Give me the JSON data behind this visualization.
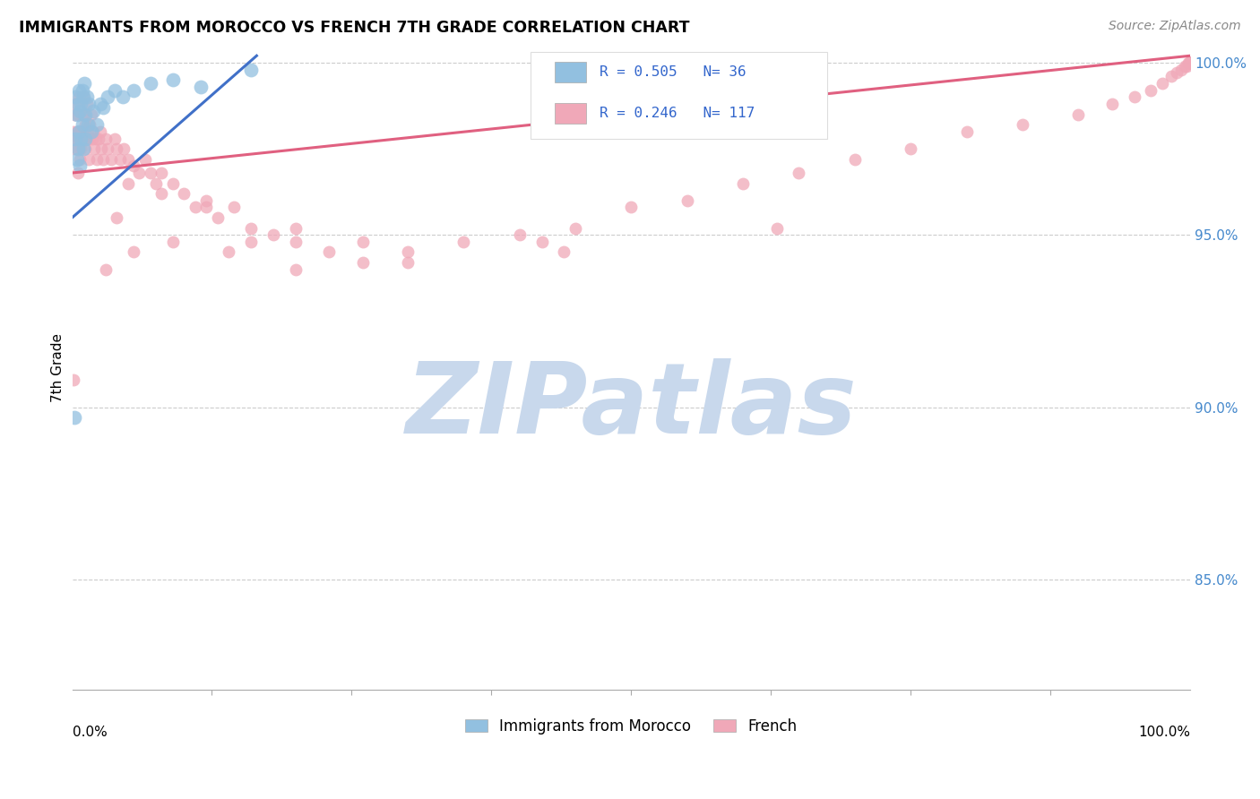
{
  "title": "IMMIGRANTS FROM MOROCCO VS FRENCH 7TH GRADE CORRELATION CHART",
  "source": "Source: ZipAtlas.com",
  "ylabel": "7th Grade",
  "blue_R": 0.505,
  "blue_N": 36,
  "pink_R": 0.246,
  "pink_N": 117,
  "blue_color": "#92C0E0",
  "pink_color": "#F0A8B8",
  "blue_edge_color": "#92C0E0",
  "pink_edge_color": "#F0A8B8",
  "blue_line_color": "#4070C8",
  "pink_line_color": "#E06080",
  "legend_label_blue": "Immigrants from Morocco",
  "legend_label_pink": "French",
  "xlim": [
    0.0,
    1.0
  ],
  "ylim": [
    0.818,
    1.005
  ],
  "y_tick_positions": [
    0.85,
    0.9,
    0.95,
    1.0
  ],
  "y_tick_labels": [
    "85.0%",
    "90.0%",
    "95.0%",
    "100.0%"
  ],
  "watermark": "ZIPatlas",
  "watermark_color": "#C8D8EC",
  "background_color": "#ffffff",
  "blue_line_x": [
    0.0,
    0.165
  ],
  "blue_line_y": [
    0.955,
    1.002
  ],
  "pink_line_x": [
    0.0,
    1.0
  ],
  "pink_line_y": [
    0.968,
    1.002
  ],
  "blue_x": [
    0.002,
    0.003,
    0.003,
    0.004,
    0.004,
    0.005,
    0.005,
    0.006,
    0.006,
    0.007,
    0.007,
    0.008,
    0.008,
    0.009,
    0.009,
    0.01,
    0.01,
    0.011,
    0.012,
    0.012,
    0.013,
    0.014,
    0.015,
    0.017,
    0.019,
    0.022,
    0.025,
    0.028,
    0.032,
    0.038,
    0.045,
    0.055,
    0.07,
    0.09,
    0.115,
    0.16
  ],
  "blue_y": [
    0.897,
    0.99,
    0.978,
    0.985,
    0.972,
    0.988,
    0.975,
    0.992,
    0.98,
    0.986,
    0.97,
    0.988,
    0.978,
    0.992,
    0.982,
    0.99,
    0.975,
    0.994,
    0.985,
    0.978,
    0.99,
    0.982,
    0.988,
    0.98,
    0.986,
    0.982,
    0.988,
    0.987,
    0.99,
    0.992,
    0.99,
    0.992,
    0.994,
    0.995,
    0.993,
    0.998
  ],
  "pink_x": [
    0.001,
    0.002,
    0.002,
    0.003,
    0.003,
    0.004,
    0.004,
    0.005,
    0.005,
    0.005,
    0.006,
    0.006,
    0.007,
    0.007,
    0.008,
    0.008,
    0.009,
    0.009,
    0.01,
    0.01,
    0.011,
    0.011,
    0.012,
    0.012,
    0.013,
    0.013,
    0.014,
    0.015,
    0.015,
    0.016,
    0.017,
    0.018,
    0.019,
    0.02,
    0.021,
    0.022,
    0.024,
    0.025,
    0.026,
    0.028,
    0.03,
    0.032,
    0.035,
    0.038,
    0.04,
    0.043,
    0.046,
    0.05,
    0.055,
    0.06,
    0.065,
    0.07,
    0.075,
    0.08,
    0.09,
    0.1,
    0.11,
    0.12,
    0.13,
    0.145,
    0.16,
    0.18,
    0.2,
    0.23,
    0.26,
    0.3,
    0.35,
    0.4,
    0.45,
    0.5,
    0.55,
    0.6,
    0.65,
    0.7,
    0.75,
    0.8,
    0.85,
    0.9,
    0.93,
    0.95,
    0.965,
    0.975,
    0.983,
    0.988,
    0.992,
    0.995,
    0.997,
    0.998,
    0.999,
    1.0,
    1.0,
    1.0,
    1.0,
    1.0,
    1.0,
    1.0,
    1.0,
    1.0,
    1.0,
    1.0,
    0.001,
    0.04,
    0.16,
    0.26,
    0.42,
    0.63,
    0.05,
    0.08,
    0.12,
    0.2,
    0.03,
    0.055,
    0.09,
    0.14,
    0.2,
    0.3,
    0.44
  ],
  "pink_y": [
    0.98,
    0.975,
    0.985,
    0.978,
    0.988,
    0.98,
    0.975,
    0.985,
    0.978,
    0.968,
    0.98,
    0.99,
    0.978,
    0.972,
    0.98,
    0.975,
    0.978,
    0.985,
    0.98,
    0.99,
    0.978,
    0.985,
    0.975,
    0.982,
    0.978,
    0.988,
    0.98,
    0.978,
    0.972,
    0.982,
    0.985,
    0.978,
    0.98,
    0.975,
    0.978,
    0.972,
    0.978,
    0.98,
    0.975,
    0.972,
    0.978,
    0.975,
    0.972,
    0.978,
    0.975,
    0.972,
    0.975,
    0.972,
    0.97,
    0.968,
    0.972,
    0.968,
    0.965,
    0.968,
    0.965,
    0.962,
    0.958,
    0.96,
    0.955,
    0.958,
    0.952,
    0.95,
    0.948,
    0.945,
    0.948,
    0.945,
    0.948,
    0.95,
    0.952,
    0.958,
    0.96,
    0.965,
    0.968,
    0.972,
    0.975,
    0.98,
    0.982,
    0.985,
    0.988,
    0.99,
    0.992,
    0.994,
    0.996,
    0.997,
    0.998,
    0.999,
    0.999,
    1.0,
    1.0,
    1.0,
    1.0,
    1.0,
    1.0,
    1.0,
    1.0,
    1.0,
    1.0,
    1.0,
    1.0,
    1.0,
    0.908,
    0.955,
    0.948,
    0.942,
    0.948,
    0.952,
    0.965,
    0.962,
    0.958,
    0.952,
    0.94,
    0.945,
    0.948,
    0.945,
    0.94,
    0.942,
    0.945
  ]
}
